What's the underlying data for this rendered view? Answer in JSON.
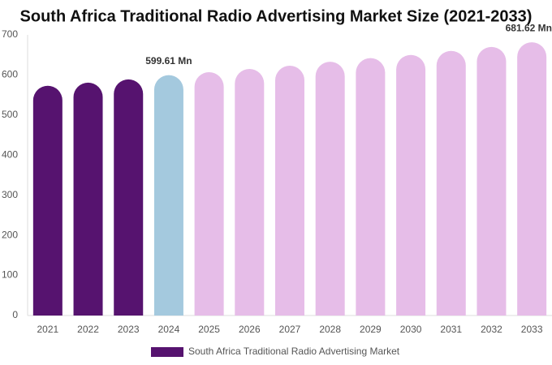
{
  "chart_data": {
    "type": "bar",
    "title": "South Africa Traditional Radio Advertising Market Size (2021-2033)",
    "categories": [
      "2021",
      "2022",
      "2023",
      "2024",
      "2025",
      "2026",
      "2027",
      "2028",
      "2029",
      "2030",
      "2031",
      "2032",
      "2033"
    ],
    "series": [
      {
        "name": "South Africa Traditional Radio Advertising Market",
        "color": "#56136f",
        "values": [
          573,
          581,
          589,
          599.61,
          607,
          615,
          623,
          633,
          642,
          650,
          660,
          670,
          681.62
        ],
        "value_labels": [
          null,
          null,
          null,
          "599.61 Mn",
          null,
          null,
          null,
          null,
          null,
          null,
          null,
          null,
          "681.62 Mn"
        ],
        "colors": [
          "#56136f",
          "#56136f",
          "#56136f",
          "#a4c9de",
          "#e6bde8",
          "#e6bde8",
          "#e6bde8",
          "#e6bde8",
          "#e6bde8",
          "#e6bde8",
          "#e6bde8",
          "#e6bde8",
          "#e6bde8"
        ]
      }
    ],
    "ylim": [
      0,
      700
    ],
    "yticks": [
      0,
      100,
      200,
      300,
      400,
      500,
      600,
      700
    ],
    "grid": false
  }
}
